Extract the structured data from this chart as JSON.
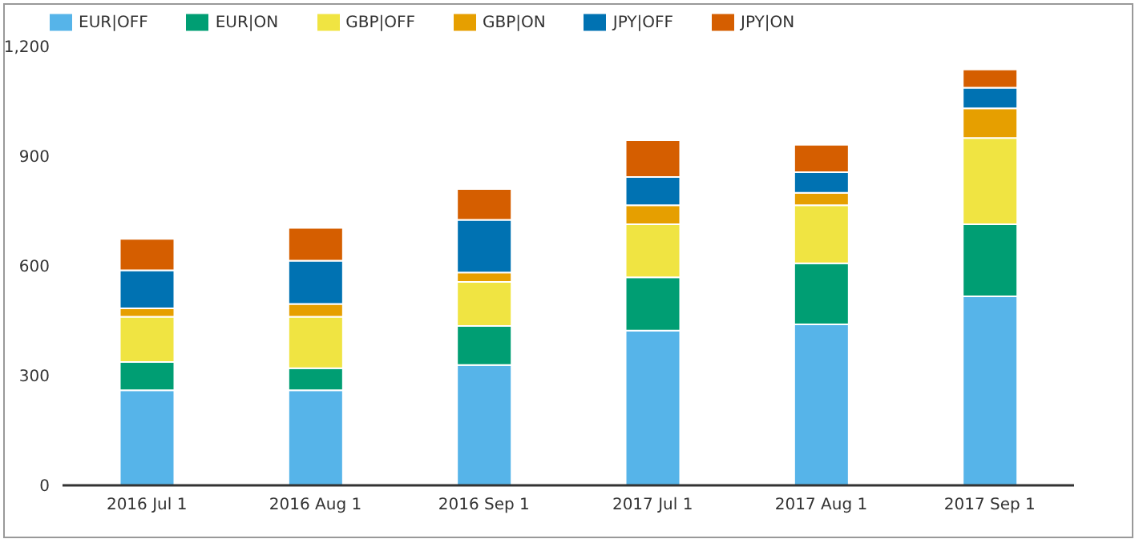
{
  "chart_data": {
    "type": "bar",
    "stacked": true,
    "categories": [
      "2016 Jul 1",
      "2016 Aug 1",
      "2016 Sep 1",
      "2017 Jul 1",
      "2017 Aug 1",
      "2017 Sep 1"
    ],
    "series": [
      {
        "name": "EUR|OFF",
        "color": "#56b4e9",
        "values": [
          260,
          260,
          329,
          423,
          440,
          517
        ]
      },
      {
        "name": "EUR|ON",
        "color": "#009e73",
        "values": [
          77,
          60,
          107,
          146,
          167,
          197
        ]
      },
      {
        "name": "GBP|OFF",
        "color": "#f0e442",
        "values": [
          124,
          141,
          120,
          145,
          159,
          236
        ]
      },
      {
        "name": "GBP|ON",
        "color": "#e69f00",
        "values": [
          23,
          35,
          26,
          52,
          34,
          81
        ]
      },
      {
        "name": "JPY|OFF",
        "color": "#0072b2",
        "values": [
          104,
          118,
          144,
          77,
          56,
          56
        ]
      },
      {
        "name": "JPY|ON",
        "color": "#d55e00",
        "values": [
          86,
          90,
          84,
          101,
          75,
          50
        ]
      }
    ],
    "ylim": [
      0,
      1200
    ],
    "yticks": [
      0,
      300,
      600,
      900,
      {
        "value": 1200,
        "label": "1,200"
      }
    ],
    "grid": false,
    "legend": "top left"
  }
}
